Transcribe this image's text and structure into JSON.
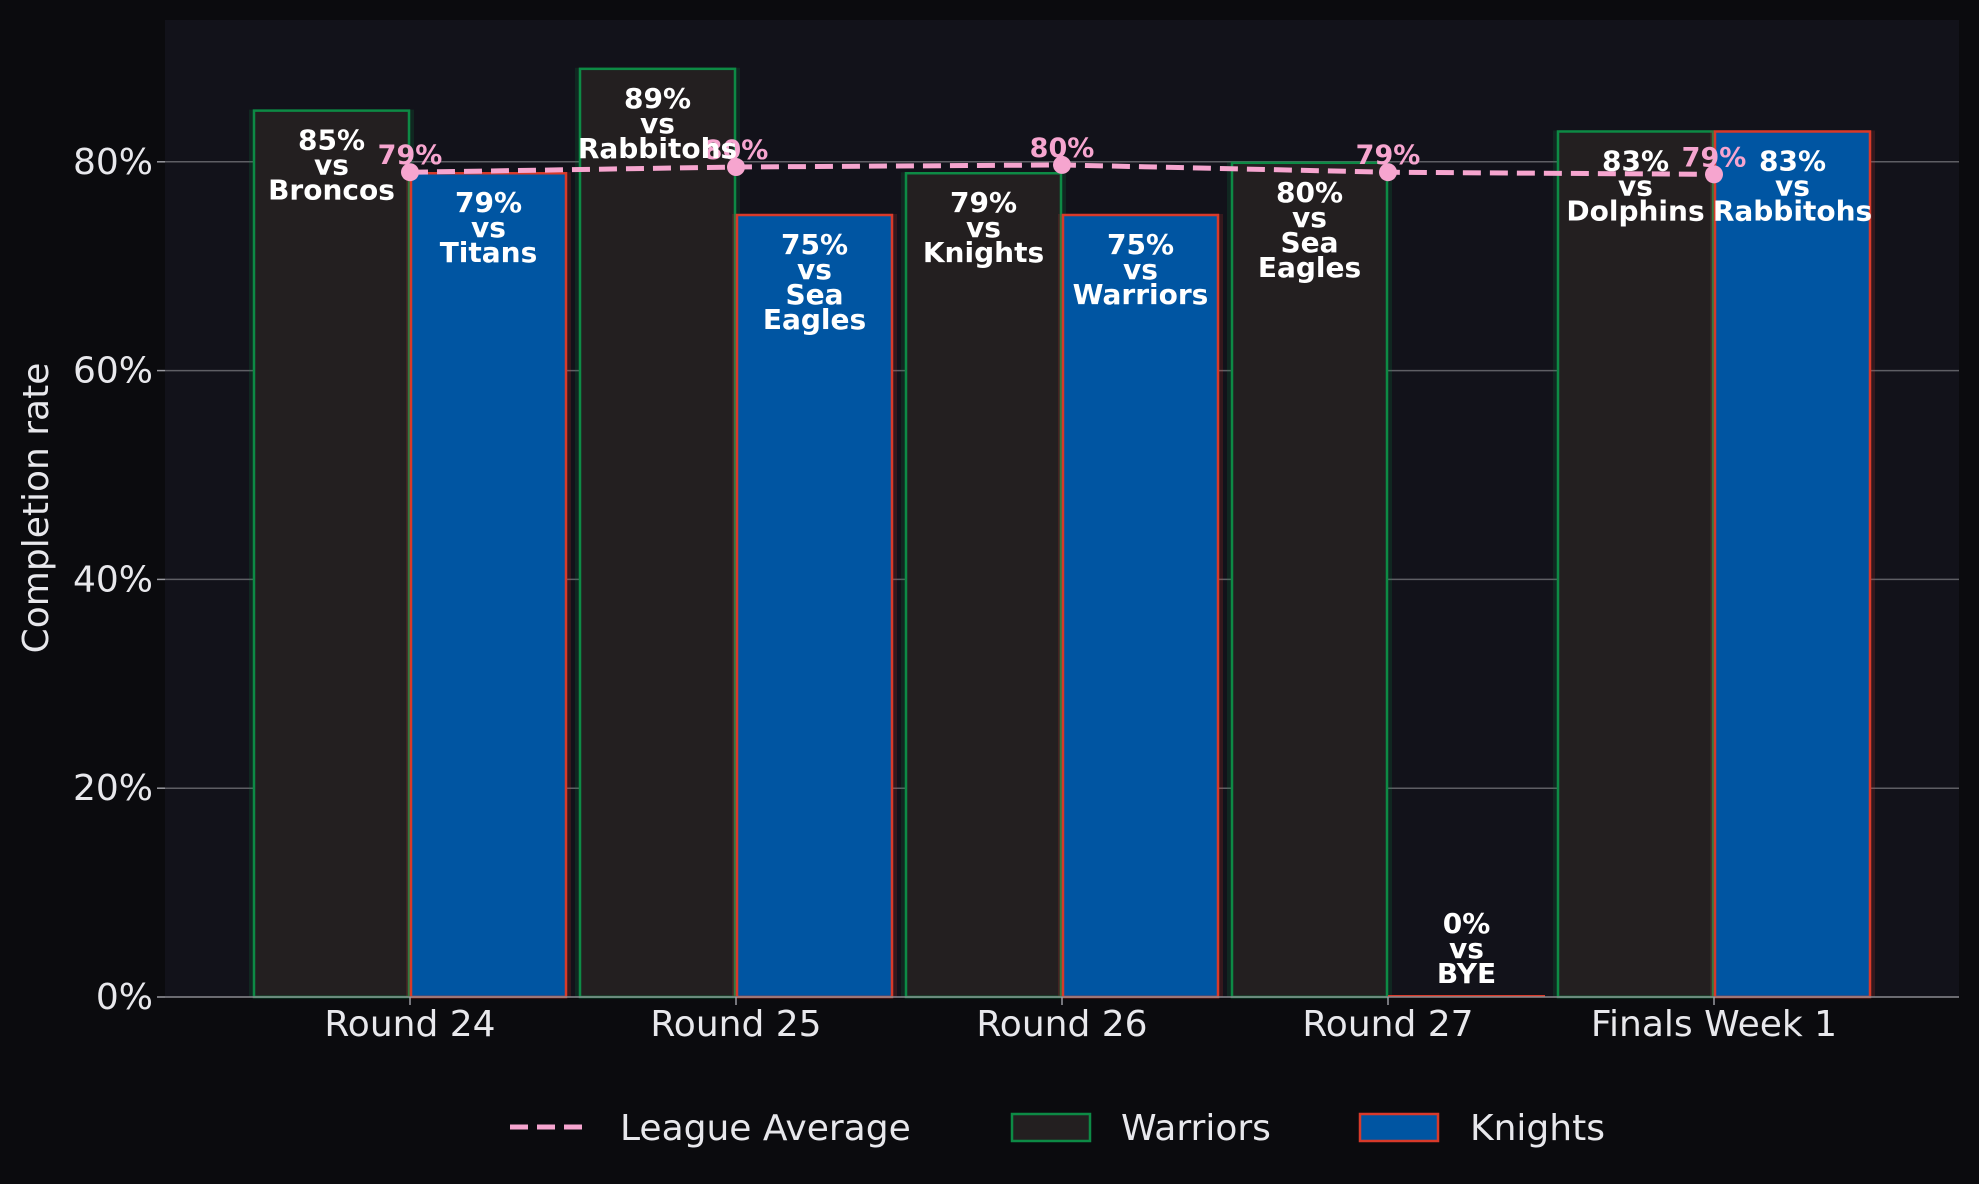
{
  "chart_data": {
    "type": "bar",
    "categories": [
      "Round 24",
      "Round 25",
      "Round 26",
      "Round 27",
      "Finals Week 1"
    ],
    "series": [
      {
        "name": "Warriors",
        "values": [
          85,
          89,
          79,
          80,
          83
        ],
        "labels": [
          [
            "85%",
            "vs",
            "Broncos"
          ],
          [
            "89%",
            "vs",
            "Rabbitohs"
          ],
          [
            "79%",
            "vs",
            "Knights"
          ],
          [
            "80%",
            "vs",
            "Sea",
            "Eagles"
          ],
          [
            "83%",
            "vs",
            "Dolphins"
          ]
        ]
      },
      {
        "name": "Knights",
        "values": [
          79,
          75,
          75,
          0,
          83
        ],
        "labels": [
          [
            "79%",
            "vs",
            "Titans"
          ],
          [
            "75%",
            "vs",
            "Sea",
            "Eagles"
          ],
          [
            "75%",
            "vs",
            "Warriors"
          ],
          [
            "0%",
            "vs",
            "BYE"
          ],
          [
            "83%",
            "vs",
            "Rabbitohs"
          ]
        ]
      },
      {
        "name": "League Average",
        "kind": "line",
        "values": [
          79,
          79.5,
          79.7,
          79,
          78.8
        ],
        "labels": [
          "79%",
          "80%",
          "80%",
          "79%",
          "79%"
        ]
      }
    ],
    "xlabel": "",
    "ylabel": "Completion rate",
    "ylim": [
      0,
      93
    ],
    "yticks": [
      0,
      20,
      40,
      60,
      80
    ],
    "ytick_labels": [
      "0%",
      "20%",
      "40%",
      "60%",
      "80%"
    ],
    "grid": true,
    "legend": "bottom-center",
    "colors": {
      "Warriors_fill": "#231f20",
      "Warriors_edge": "#0d8a45",
      "Knights_fill": "#0055a2",
      "Knights_edge": "#d83a2a",
      "League Average": "#f6a5cf",
      "background": "#0b0b0e",
      "plot_background": "#12121a",
      "grid": "#5e5e64",
      "text": "#e8e8ec"
    }
  }
}
